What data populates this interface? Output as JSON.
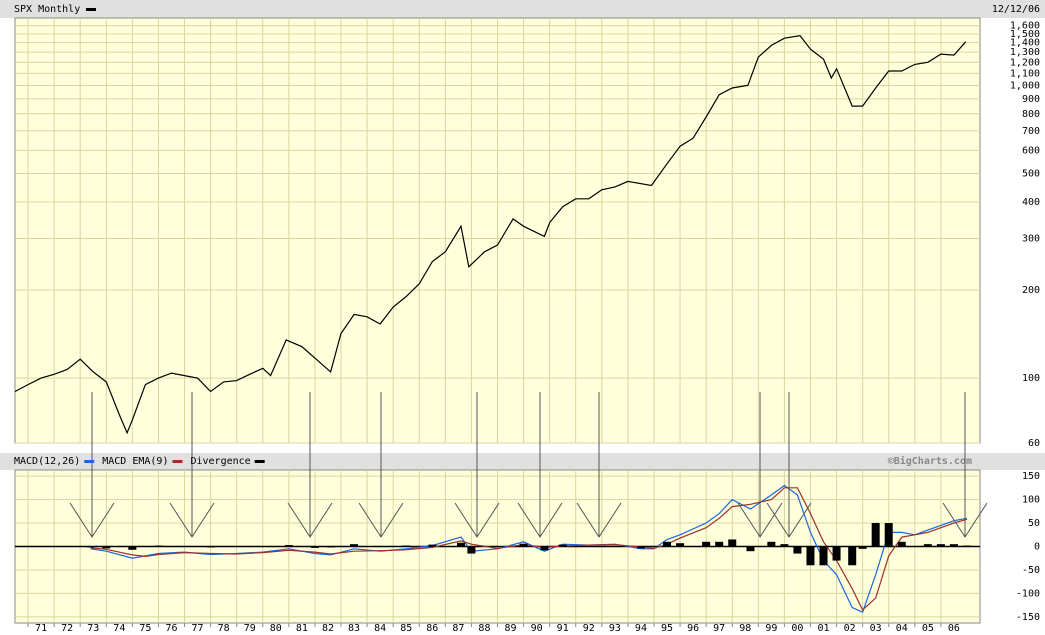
{
  "chart_data": [
    {
      "type": "line",
      "title": "SPX Monthly",
      "date_label": "12/12/06",
      "color": "#000000",
      "log_scale": true,
      "grid": true,
      "x": [
        1970.5,
        1971,
        1971.5,
        1972,
        1972.5,
        1973,
        1973.5,
        1974,
        1974.5,
        1974.8,
        1975,
        1975.5,
        1976,
        1976.5,
        1977,
        1977.5,
        1978,
        1978.5,
        1979,
        1979.5,
        1980,
        1980.3,
        1980.9,
        1981.5,
        1982,
        1982.6,
        1983,
        1983.5,
        1984,
        1984.5,
        1985,
        1985.5,
        1986,
        1986.5,
        1987,
        1987.6,
        1987.9,
        1988.5,
        1989,
        1989.6,
        1990,
        1990.8,
        1991,
        1991.5,
        1992,
        1992.5,
        1993,
        1993.5,
        1994,
        1994.9,
        1995.5,
        1996,
        1996.5,
        1997,
        1997.5,
        1998,
        1998.6,
        1999,
        1999.5,
        2000,
        2000.6,
        2001,
        2001.5,
        2001.8,
        2002,
        2002.6,
        2003,
        2003.5,
        2004,
        2004.5,
        2005,
        2005.5,
        2006,
        2006.5,
        2006.95
      ],
      "values": [
        90,
        95,
        100,
        103,
        107,
        116,
        105,
        97,
        75,
        65,
        72,
        95,
        100,
        104,
        102,
        100,
        90,
        97,
        98,
        103,
        108,
        102,
        135,
        128,
        117,
        105,
        142,
        165,
        162,
        153,
        175,
        190,
        210,
        250,
        270,
        330,
        240,
        270,
        285,
        350,
        330,
        305,
        340,
        385,
        410,
        410,
        440,
        450,
        470,
        455,
        540,
        620,
        660,
        780,
        930,
        980,
        1000,
        1250,
        1370,
        1450,
        1480,
        1330,
        1230,
        1060,
        1140,
        850,
        850,
        980,
        1120,
        1120,
        1180,
        1200,
        1280,
        1270,
        1410
      ],
      "xlim": [
        1970.5,
        2007.5
      ],
      "ylim": [
        60,
        1700
      ],
      "yticks": [
        60,
        100,
        200,
        300,
        400,
        500,
        600,
        700,
        800,
        900,
        {
          "value": 1000,
          "label": "1,000"
        },
        {
          "value": 1100,
          "label": "1,100"
        },
        {
          "value": 1200,
          "label": "1,200"
        },
        {
          "value": 1300,
          "label": "1,300"
        },
        {
          "value": 1400,
          "label": "1,400"
        },
        {
          "value": 1500,
          "label": "1,500"
        },
        {
          "value": 1600,
          "label": "1,600"
        }
      ]
    },
    {
      "type": "line",
      "credit": "©BigCharts.com",
      "grid": true,
      "x": [
        1973.4,
        1974,
        1975,
        1975.5,
        1976,
        1977,
        1978,
        1979,
        1980,
        1981,
        1982,
        1982.6,
        1983.5,
        1984.5,
        1985.5,
        1986.5,
        1987.6,
        1988,
        1989,
        1990,
        1990.8,
        1991.5,
        1992.5,
        1993.5,
        1994.5,
        1995,
        1995.5,
        1996,
        1997,
        1997.5,
        1998,
        1998.7,
        1999.5,
        2000,
        2000.5,
        2001,
        2001.5,
        2002,
        2002.6,
        2003,
        2003.5,
        2004,
        2004.5,
        2005,
        2005.5,
        2006,
        2006.5,
        2007
      ],
      "series": [
        {
          "name": "MACD(12,26)",
          "color": "#1a66e0",
          "values": [
            -5,
            -10,
            -25,
            -20,
            -15,
            -12,
            -17,
            -15,
            -12,
            -5,
            -15,
            -18,
            -5,
            -10,
            -5,
            2,
            20,
            -10,
            -5,
            10,
            -10,
            5,
            3,
            5,
            -5,
            -5,
            15,
            25,
            50,
            70,
            100,
            80,
            110,
            130,
            110,
            30,
            -30,
            -60,
            -130,
            -140,
            -60,
            30,
            30,
            25,
            35,
            45,
            55,
            60
          ]
        },
        {
          "name": "MACD EMA(9)",
          "color": "#a0302a",
          "values": [
            -3,
            -6,
            -18,
            -21,
            -17,
            -13,
            -15,
            -16,
            -13,
            -8,
            -12,
            -16,
            -10,
            -9,
            -7,
            -2,
            12,
            5,
            -4,
            4,
            -2,
            1,
            3,
            4,
            -1,
            -4,
            5,
            18,
            40,
            60,
            85,
            90,
            100,
            125,
            125,
            70,
            10,
            -30,
            -90,
            -135,
            -110,
            -20,
            20,
            25,
            30,
            40,
            50,
            58
          ]
        },
        {
          "name": "Divergence",
          "type": "bar",
          "color": "#000000",
          "values": [
            -2,
            -4,
            -7,
            1,
            2,
            1,
            -2,
            1,
            1,
            3,
            -3,
            -2,
            5,
            -1,
            2,
            4,
            8,
            -15,
            -1,
            6,
            -8,
            4,
            0,
            1,
            -4,
            -1,
            10,
            7,
            10,
            10,
            15,
            -10,
            10,
            5,
            -15,
            -40,
            -40,
            -30,
            -40,
            -5,
            50,
            50,
            10,
            0,
            5,
            5,
            5,
            2
          ]
        }
      ],
      "xlim": [
        1970.5,
        2007.5
      ],
      "ylim": [
        -163,
        163
      ],
      "yticks": [
        -150,
        -100,
        -50,
        0,
        50,
        100,
        150
      ],
      "xticks": [
        {
          "value": 1971,
          "label": "71"
        },
        {
          "value": 1972,
          "label": "72"
        },
        {
          "value": 1973,
          "label": "73"
        },
        {
          "value": 1974,
          "label": "74"
        },
        {
          "value": 1975,
          "label": "75"
        },
        {
          "value": 1976,
          "label": "76"
        },
        {
          "value": 1977,
          "label": "77"
        },
        {
          "value": 1978,
          "label": "78"
        },
        {
          "value": 1979,
          "label": "79"
        },
        {
          "value": 1980,
          "label": "80"
        },
        {
          "value": 1981,
          "label": "81"
        },
        {
          "value": 1982,
          "label": "82"
        },
        {
          "value": 1983,
          "label": "83"
        },
        {
          "value": 1984,
          "label": "84"
        },
        {
          "value": 1985,
          "label": "85"
        },
        {
          "value": 1986,
          "label": "86"
        },
        {
          "value": 1987,
          "label": "87"
        },
        {
          "value": 1988,
          "label": "88"
        },
        {
          "value": 1989,
          "label": "89"
        },
        {
          "value": 1990,
          "label": "90"
        },
        {
          "value": 1991,
          "label": "91"
        },
        {
          "value": 1992,
          "label": "92"
        },
        {
          "value": 1993,
          "label": "93"
        },
        {
          "value": 1994,
          "label": "94"
        },
        {
          "value": 1995,
          "label": "95"
        },
        {
          "value": 1996,
          "label": "96"
        },
        {
          "value": 1997,
          "label": "97"
        },
        {
          "value": 1998,
          "label": "98"
        },
        {
          "value": 1999,
          "label": "99"
        },
        {
          "value": 2000,
          "label": "00"
        },
        {
          "value": 2001,
          "label": "01"
        },
        {
          "value": 2002,
          "label": "02"
        },
        {
          "value": 2003,
          "label": "03"
        },
        {
          "value": 2004,
          "label": "04"
        },
        {
          "value": 2005,
          "label": "05"
        },
        {
          "value": 2006,
          "label": "06"
        }
      ]
    }
  ]
}
